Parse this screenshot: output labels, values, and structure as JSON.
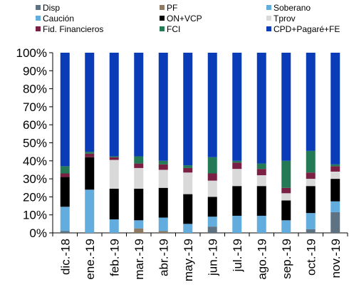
{
  "chart_data": {
    "type": "bar",
    "stacked": true,
    "percent": true,
    "title": "",
    "xlabel": "",
    "ylabel": "",
    "ylim": [
      0,
      100
    ],
    "yticks": [
      "0%",
      "10%",
      "20%",
      "30%",
      "40%",
      "50%",
      "60%",
      "70%",
      "80%",
      "90%",
      "100%"
    ],
    "grid": false,
    "legend_position": "top",
    "categories": [
      "dic.-18",
      "ene.-19",
      "feb.-19",
      "mar.-19",
      "abr.-19",
      "may.-19",
      "jun.-19",
      "jul.-19",
      "ago.-19",
      "sep.-19",
      "oct.-19",
      "nov.-19"
    ],
    "series": [
      {
        "name": "Disp",
        "color": "#5f7282",
        "values": [
          1,
          0,
          0,
          0,
          0,
          0,
          3.5,
          0,
          0,
          0,
          2,
          11.5
        ]
      },
      {
        "name": "PF",
        "color": "#8c7a62",
        "values": [
          0,
          0,
          0,
          2.5,
          1,
          0,
          0,
          0,
          0,
          0,
          0,
          0
        ]
      },
      {
        "name": "Soberano",
        "color": "#62acde",
        "values": [
          0,
          0,
          0,
          0,
          0,
          0,
          0,
          0,
          0,
          0,
          0,
          0
        ]
      },
      {
        "name": "Caución",
        "color": "#62acde",
        "values": [
          13.5,
          24,
          7.5,
          4.5,
          7.5,
          5,
          5.5,
          9.5,
          9.5,
          7,
          9,
          6
        ]
      },
      {
        "name": "ON+VCP",
        "color": "#000000",
        "values": [
          16.5,
          18,
          17,
          17.5,
          16.5,
          16.5,
          11,
          16.5,
          16.5,
          11,
          15,
          12.5
        ]
      },
      {
        "name": "Tprov",
        "color": "#d9d9d9",
        "values": [
          0,
          0,
          16,
          11.5,
          10,
          12,
          9,
          9.5,
          6,
          4,
          4,
          4
        ]
      },
      {
        "name": "Fid. Financieros",
        "color": "#7b2045",
        "values": [
          2,
          2,
          1.5,
          2.5,
          3,
          2.5,
          4,
          3.5,
          3.5,
          3,
          3.5,
          3
        ]
      },
      {
        "name": "FCI",
        "color": "#237a54",
        "values": [
          4,
          1,
          0.5,
          4,
          2,
          1.5,
          9,
          1,
          3,
          15,
          12,
          1
        ]
      },
      {
        "name": "CPD+Pagaré+FE",
        "color": "#0a3cb8",
        "values": [
          63,
          55,
          57.5,
          57.5,
          60,
          62.5,
          58,
          60,
          61.5,
          60,
          54.5,
          62
        ]
      }
    ]
  }
}
